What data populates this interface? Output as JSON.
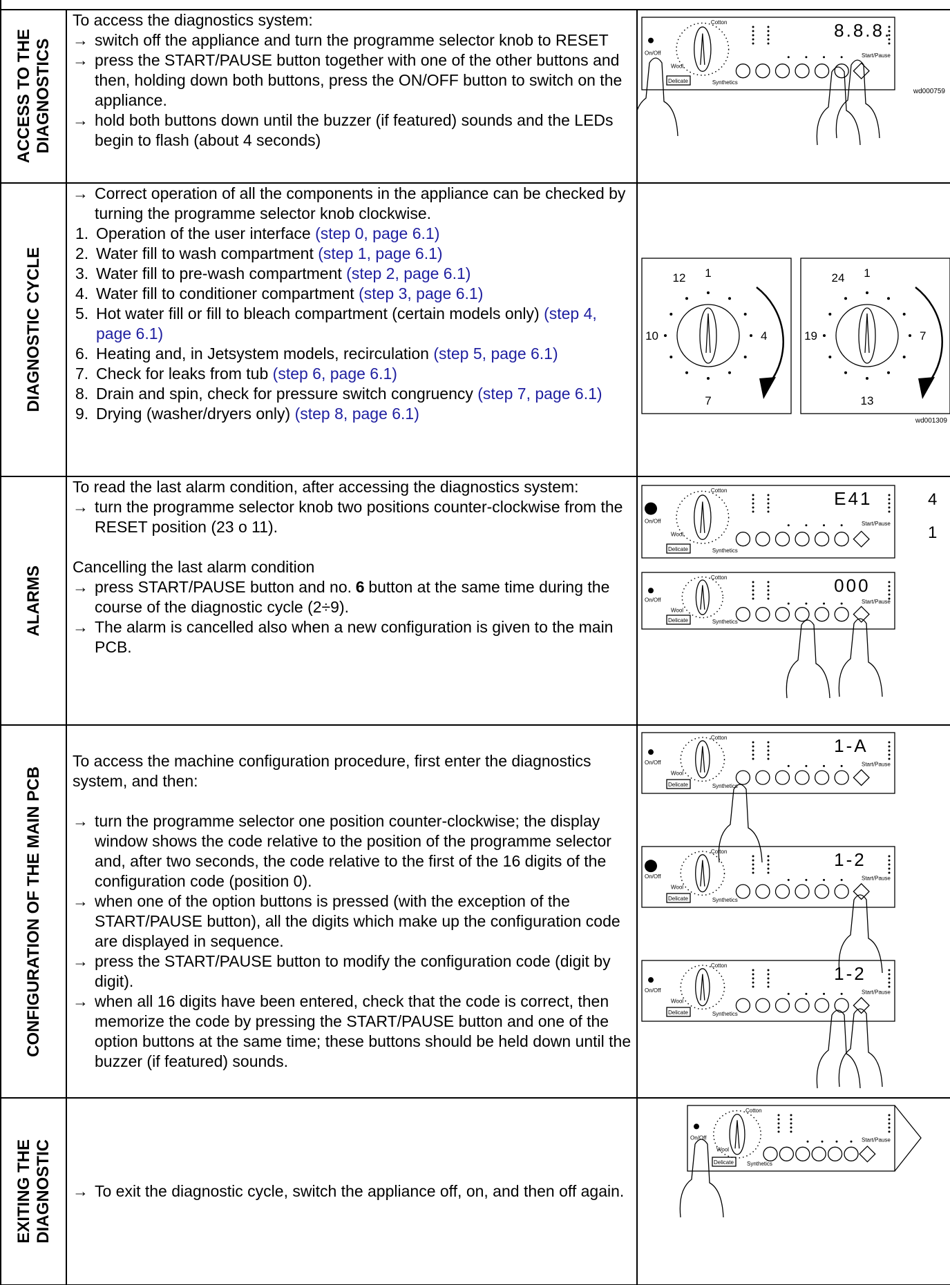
{
  "link_color": "#1f1fa0",
  "panel_labels": {
    "on_off": "On/Off",
    "start_pause": "Start/Pause",
    "cotton": "Cotton",
    "wool": "Wool",
    "delicate": "Delicate",
    "synthetics": "Synthetics"
  },
  "rows": [
    {
      "head": [
        "ACCESS TO THE",
        "DIAGNOSTICS"
      ],
      "blocks": [
        [
          {
            "text": "To access the diagnostics system:"
          },
          {
            "marker": "→",
            "text": "switch off the appliance and turn the programme selector knob to RESET"
          },
          {
            "marker": "→",
            "text": "press the START/PAUSE button together with one of the other buttons and then, holding down both buttons, press the ON/OFF button to switch on the appliance."
          },
          {
            "marker": "→",
            "text": "hold both buttons down until the buzzer (if featured) sounds and the LEDs begin to flash (about 4 seconds)"
          }
        ]
      ],
      "figures": [
        {
          "display": "8.8.8.",
          "caption": "wd000759"
        }
      ]
    },
    {
      "head": [
        "DIAGNOSTIC CYCLE"
      ],
      "blocks": [
        [
          {
            "marker": "→",
            "text": "Correct operation of all the components in the appliance can be checked by turning the programme selector knob clockwise."
          },
          {
            "marker": "1.",
            "text": "Operation of the user interface",
            "ref": "(step 0, page 6.1)"
          },
          {
            "marker": "2.",
            "text": "Water fill to wash compartment",
            "ref": "(step 1, page 6.1)"
          },
          {
            "marker": "3.",
            "text": "Water fill to pre-wash compartment",
            "ref": "(step 2, page 6.1)"
          },
          {
            "marker": "4.",
            "text": "Water fill to conditioner compartment",
            "ref": "(step 3, page 6.1)"
          },
          {
            "marker": "5.",
            "text": "Hot water fill or fill to bleach compartment (certain models only)",
            "ref": "(step 4, page 6.1)"
          },
          {
            "marker": "6.",
            "text": "Heating and, in Jetsystem models, recirculation",
            "ref": "(step 5, page 6.1)"
          },
          {
            "marker": "7.",
            "text": "Check for leaks from tub",
            "ref": "(step 6, page 6.1)"
          },
          {
            "marker": "8.",
            "text": "Drain and spin, check for pressure switch congruency",
            "ref": "(step 7, page 6.1)"
          },
          {
            "marker": "9.",
            "text": "Drying (washer/dryers only)",
            "ref": "(step 8, page 6.1)"
          }
        ]
      ],
      "figures": [
        {
          "dials": [
            {
              "top": "1",
              "top_left": "12",
              "left": "10",
              "right": "4",
              "bottom": "7"
            },
            {
              "top": "1",
              "top_left": "24",
              "left": "19",
              "right": "7",
              "bottom": "13"
            }
          ],
          "caption": "wd001309"
        }
      ]
    },
    {
      "head": [
        "ALARMS"
      ],
      "blocks": [
        [
          {
            "text": "To read the last alarm condition, after accessing the diagnostics system:"
          },
          {
            "marker": "→",
            "text": "turn the programme selector knob two positions counter-clockwise from the RESET position (23 o 11)."
          }
        ],
        [
          {
            "text": "Cancelling the last alarm condition"
          },
          {
            "marker": "→",
            "text": "press START/PAUSE button and no.",
            "bold": "6",
            "after": "button at the same time during the course of the diagnostic cycle (2÷9)."
          },
          {
            "marker": "→",
            "text": "The alarm is cancelled also when a new configuration is given to the main PCB."
          }
        ]
      ],
      "figures": [
        {
          "display": "E41",
          "side": [
            "4",
            "1"
          ]
        },
        {
          "display": "000"
        }
      ]
    },
    {
      "head": [
        "CONFIGURATION OF THE MAIN PCB"
      ],
      "blocks": [
        [
          {
            "text": "To access the machine configuration procedure, first enter the diagnostics system, and then:"
          }
        ],
        [
          {
            "marker": "→",
            "text": "turn the programme selector one position counter-clockwise; the display window shows the code relative to the position of the programme selector and, after two seconds, the code relative to the first of the 16 digits of the configuration code (position 0)."
          },
          {
            "marker": "→",
            "text": "when one of the option buttons is pressed (with the exception of the START/PAUSE button), all the digits which make up the configuration code are displayed in sequence."
          },
          {
            "marker": "→",
            "text": "press the START/PAUSE button to modify the configuration code (digit by digit)."
          },
          {
            "marker": "→",
            "text": "when all 16 digits have been entered, check that the code is correct, then memorize the code by pressing the START/PAUSE button and one of the option buttons at the same time; these buttons should be held down until the buzzer (if featured) sounds."
          }
        ]
      ],
      "figures": [
        {
          "display": "1-A"
        },
        {
          "display": "1-2"
        },
        {
          "display": "1-2"
        }
      ]
    },
    {
      "head": [
        "EXITING THE",
        "DIAGNOSTIC"
      ],
      "blocks": [
        [
          {
            "marker": "→",
            "text": "To exit the diagnostic cycle, switch the appliance off, on, and then off again."
          }
        ]
      ],
      "figures": [
        {
          "display": null
        }
      ]
    }
  ]
}
